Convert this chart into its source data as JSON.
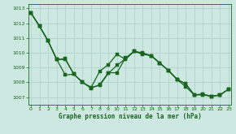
{
  "xlabel": "Graphe pression niveau de la mer (hPa)",
  "background_color": "#cce8e0",
  "grid_color": "#aacfc8",
  "line_color": "#1a6620",
  "ylim": [
    1006.5,
    1013.3
  ],
  "xlim": [
    -0.3,
    23.3
  ],
  "yticks": [
    1007,
    1008,
    1009,
    1010,
    1011,
    1012,
    1013
  ],
  "xticks": [
    0,
    1,
    2,
    3,
    4,
    5,
    6,
    7,
    8,
    9,
    10,
    11,
    12,
    13,
    14,
    15,
    16,
    17,
    18,
    19,
    20,
    21,
    22,
    23
  ],
  "line1": [
    1012.7,
    1011.8,
    1010.8,
    1009.55,
    1009.55,
    1008.55,
    1008.0,
    1007.65,
    1007.8,
    1008.6,
    1009.15,
    1009.6,
    1010.1,
    1009.9,
    1009.8,
    1009.3,
    1008.8,
    1008.2,
    1007.9,
    1007.15,
    1007.2,
    1007.05,
    1007.15,
    1007.55
  ],
  "line2": [
    1012.7,
    1011.8,
    1010.8,
    1009.55,
    1008.5,
    1008.55,
    1008.0,
    1007.6,
    1007.85,
    1008.65,
    1008.65,
    1009.65,
    1010.1,
    1009.95,
    1009.8,
    1009.3,
    1008.8,
    1008.2,
    1007.9,
    1007.15,
    1007.2,
    1007.05,
    1007.15,
    1007.55
  ],
  "line3": [
    1012.7,
    1011.8,
    1010.8,
    1009.55,
    1009.6,
    1008.55,
    1008.0,
    1007.65,
    1008.75,
    1009.2,
    1009.9,
    1009.55,
    1010.1,
    1010.0,
    1009.8,
    1009.3,
    1008.8,
    1008.2,
    1007.7,
    1007.15,
    1007.15,
    1007.05,
    1007.15,
    1007.55
  ]
}
